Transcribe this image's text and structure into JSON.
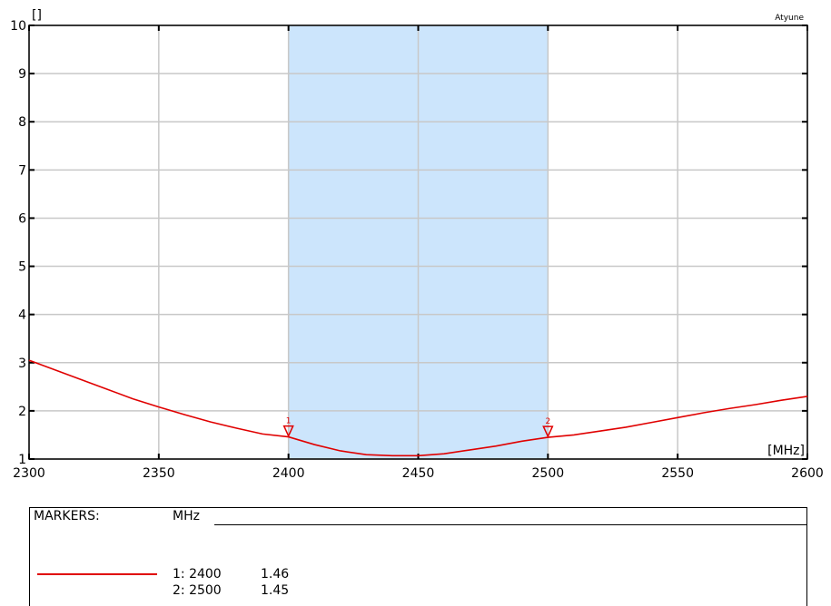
{
  "chart_data": {
    "type": "line",
    "trace_title": "Atyune",
    "ylabel": "[]",
    "xlabel": "[MHz]",
    "xlim": [
      2300,
      2600
    ],
    "ylim": [
      1,
      10
    ],
    "x_ticks": [
      "2300",
      "2350",
      "2400",
      "2450",
      "2500",
      "2550",
      "2600"
    ],
    "y_ticks": [
      "1",
      "2",
      "3",
      "4",
      "5",
      "6",
      "7",
      "8",
      "9",
      "10"
    ],
    "grid": true,
    "band_highlight": [
      2400,
      2500
    ],
    "colors": {
      "trace": "#e00000",
      "band": "#cce5fc",
      "grid": "#c8c8c8"
    },
    "series": [
      {
        "x": [
          2300,
          2310,
          2320,
          2330,
          2340,
          2350,
          2360,
          2370,
          2380,
          2390,
          2400,
          2410,
          2420,
          2430,
          2440,
          2450,
          2460,
          2470,
          2480,
          2490,
          2500,
          2510,
          2520,
          2530,
          2540,
          2550,
          2560,
          2570,
          2580,
          2590,
          2600
        ],
        "y": [
          3.05,
          2.85,
          2.65,
          2.45,
          2.25,
          2.08,
          1.92,
          1.77,
          1.64,
          1.52,
          1.46,
          1.3,
          1.17,
          1.09,
          1.07,
          1.07,
          1.11,
          1.19,
          1.27,
          1.37,
          1.45,
          1.5,
          1.58,
          1.66,
          1.76,
          1.86,
          1.96,
          2.05,
          2.13,
          2.22,
          2.3
        ]
      }
    ],
    "markers": [
      {
        "id": "1",
        "x": 2400,
        "y": 1.46
      },
      {
        "id": "2",
        "x": 2500,
        "y": 1.45
      }
    ]
  },
  "markers_table": {
    "title": "MARKERS:",
    "unit": "MHz",
    "rows": [
      {
        "label": "1: 2400",
        "value": "1.46"
      },
      {
        "label": "2: 2500",
        "value": "1.45"
      }
    ]
  }
}
